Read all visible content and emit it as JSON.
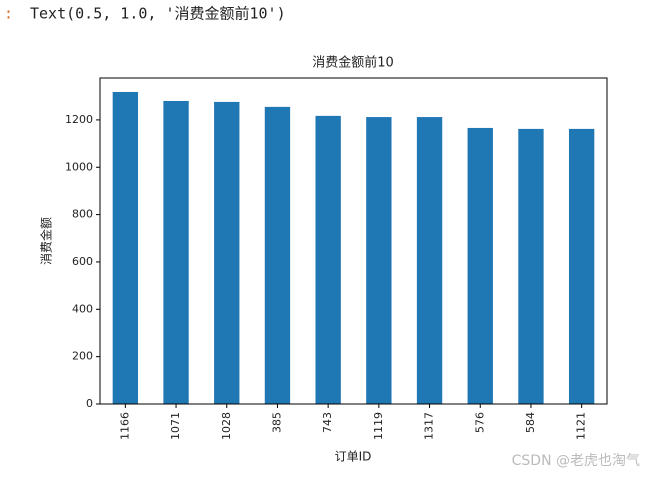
{
  "prompt_marker": ":",
  "output_text": "Text(0.5, 1.0, '消费金额前10')",
  "watermark": "CSDN @老虎也淘气",
  "chart_data": {
    "type": "bar",
    "title": "消费金额前10",
    "x_label": "订单ID",
    "y_label": "消费金额",
    "categories": [
      "1166",
      "1071",
      "1028",
      "385",
      "743",
      "1119",
      "1317",
      "576",
      "584",
      "1121"
    ],
    "values": [
      1318,
      1280,
      1276,
      1255,
      1217,
      1212,
      1212,
      1166,
      1162,
      1162
    ],
    "color": "#1f77b4",
    "ylim": [
      0,
      1377
    ],
    "yticks": [
      0,
      200,
      400,
      600,
      800,
      1000,
      1200
    ]
  }
}
